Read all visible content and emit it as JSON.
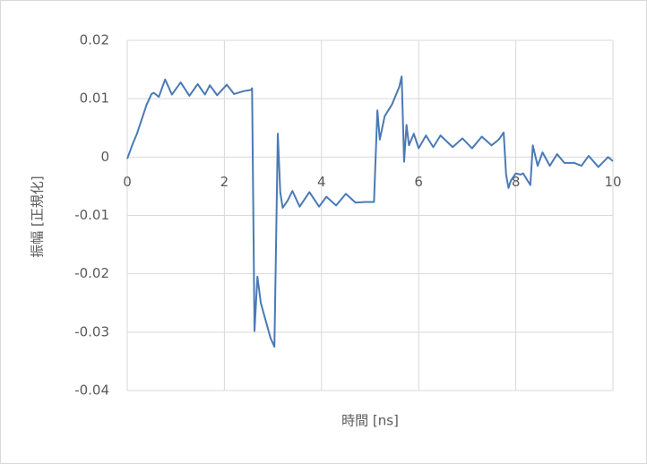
{
  "chart_data": {
    "type": "line",
    "x_label": "時間 [ns]",
    "y_label": "振幅 [正規化]",
    "color": "#4a7ab5",
    "grid": true,
    "xlim": [
      0,
      10
    ],
    "xticks": [
      0,
      2,
      4,
      6,
      8,
      10
    ],
    "ylim": [
      -0.04,
      0.02
    ],
    "yticks": [
      0.02,
      0.01,
      0,
      -0.01,
      -0.02,
      -0.03,
      -0.04
    ],
    "x": [
      0,
      0.1,
      0.2,
      0.3,
      0.4,
      0.5,
      0.55,
      0.65,
      0.78,
      0.92,
      1.1,
      1.28,
      1.45,
      1.6,
      1.7,
      1.85,
      2.05,
      2.2,
      2.4,
      2.55,
      2.57,
      2.62,
      2.68,
      2.75,
      2.85,
      2.95,
      3.03,
      3.1,
      3.15,
      3.2,
      3.3,
      3.4,
      3.55,
      3.75,
      3.95,
      4.1,
      4.3,
      4.5,
      4.7,
      4.9,
      5.08,
      5.15,
      5.2,
      5.3,
      5.45,
      5.6,
      5.65,
      5.7,
      5.75,
      5.8,
      5.9,
      6.0,
      6.15,
      6.3,
      6.45,
      6.7,
      6.9,
      7.1,
      7.3,
      7.5,
      7.65,
      7.75,
      7.8,
      7.85,
      7.9,
      8.0,
      8.1,
      8.15,
      8.3,
      8.35,
      8.45,
      8.55,
      8.7,
      8.85,
      9.0,
      9.2,
      9.35,
      9.5,
      9.7,
      9.9,
      10
    ],
    "values": [
      -0.0003,
      0.002,
      0.004,
      0.0065,
      0.009,
      0.0108,
      0.011,
      0.0103,
      0.0133,
      0.0107,
      0.0128,
      0.0105,
      0.0125,
      0.0107,
      0.0123,
      0.0106,
      0.0124,
      0.0108,
      0.0113,
      0.0115,
      0.0118,
      -0.0298,
      -0.0205,
      -0.025,
      -0.028,
      -0.031,
      -0.0325,
      0.004,
      -0.006,
      -0.0087,
      -0.0075,
      -0.0058,
      -0.0085,
      -0.006,
      -0.0085,
      -0.0068,
      -0.0083,
      -0.0063,
      -0.0078,
      -0.0077,
      -0.0077,
      0.008,
      0.003,
      0.007,
      0.009,
      0.012,
      0.0138,
      -0.0008,
      0.0055,
      0.002,
      0.004,
      0.0015,
      0.0037,
      0.0017,
      0.0037,
      0.0017,
      0.0032,
      0.0015,
      0.0035,
      0.002,
      0.003,
      0.0042,
      -0.003,
      -0.0053,
      -0.004,
      -0.0028,
      -0.003,
      -0.0028,
      -0.0048,
      0.002,
      -0.0015,
      0.0008,
      -0.0015,
      0.0005,
      -0.001,
      -0.001,
      -0.0015,
      0.0002,
      -0.0017,
      0,
      -0.0007
    ]
  }
}
